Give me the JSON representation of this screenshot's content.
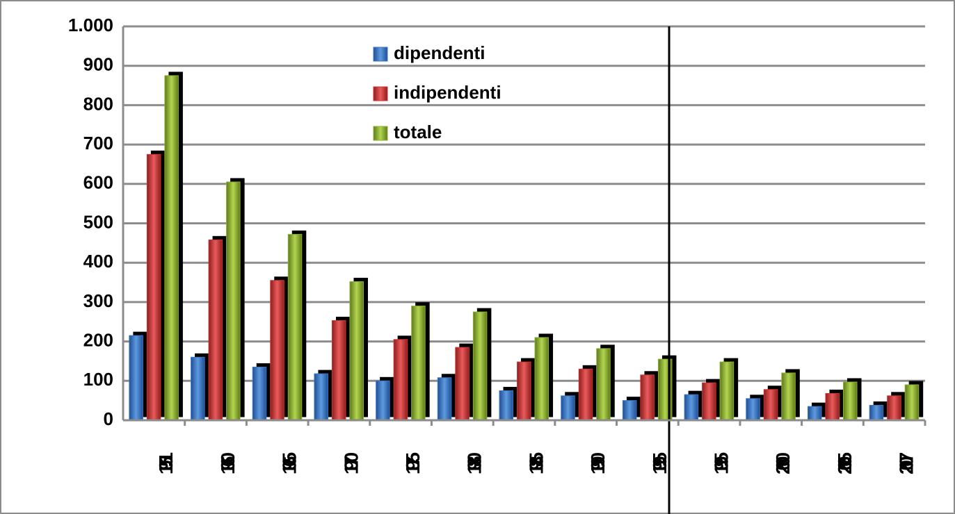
{
  "chart_data": {
    "type": "bar",
    "categories": [
      "1951",
      "1960",
      "1965",
      "1970",
      "1975",
      "1980",
      "1985",
      "1990",
      "1995",
      "1995",
      "2000",
      "2005",
      "2007"
    ],
    "series": [
      {
        "name": "dipendenti",
        "color": "#3a78c8",
        "values": [
          215,
          160,
          135,
          118,
          100,
          108,
          75,
          62,
          50,
          65,
          55,
          35,
          38
        ]
      },
      {
        "name": "indipendenti",
        "color": "#d03535",
        "values": [
          675,
          458,
          355,
          253,
          205,
          185,
          148,
          130,
          115,
          95,
          78,
          68,
          62
        ]
      },
      {
        "name": "totale",
        "color": "#8db030",
        "values": [
          875,
          605,
          472,
          352,
          290,
          275,
          210,
          182,
          155,
          148,
          120,
          97,
          90
        ]
      }
    ],
    "ylim": [
      0,
      1000
    ],
    "yticks": [
      0,
      100,
      200,
      300,
      400,
      500,
      600,
      700,
      800,
      900,
      {
        "value": 1000,
        "label": "1.000"
      }
    ],
    "grid": true,
    "legend": "top"
  }
}
